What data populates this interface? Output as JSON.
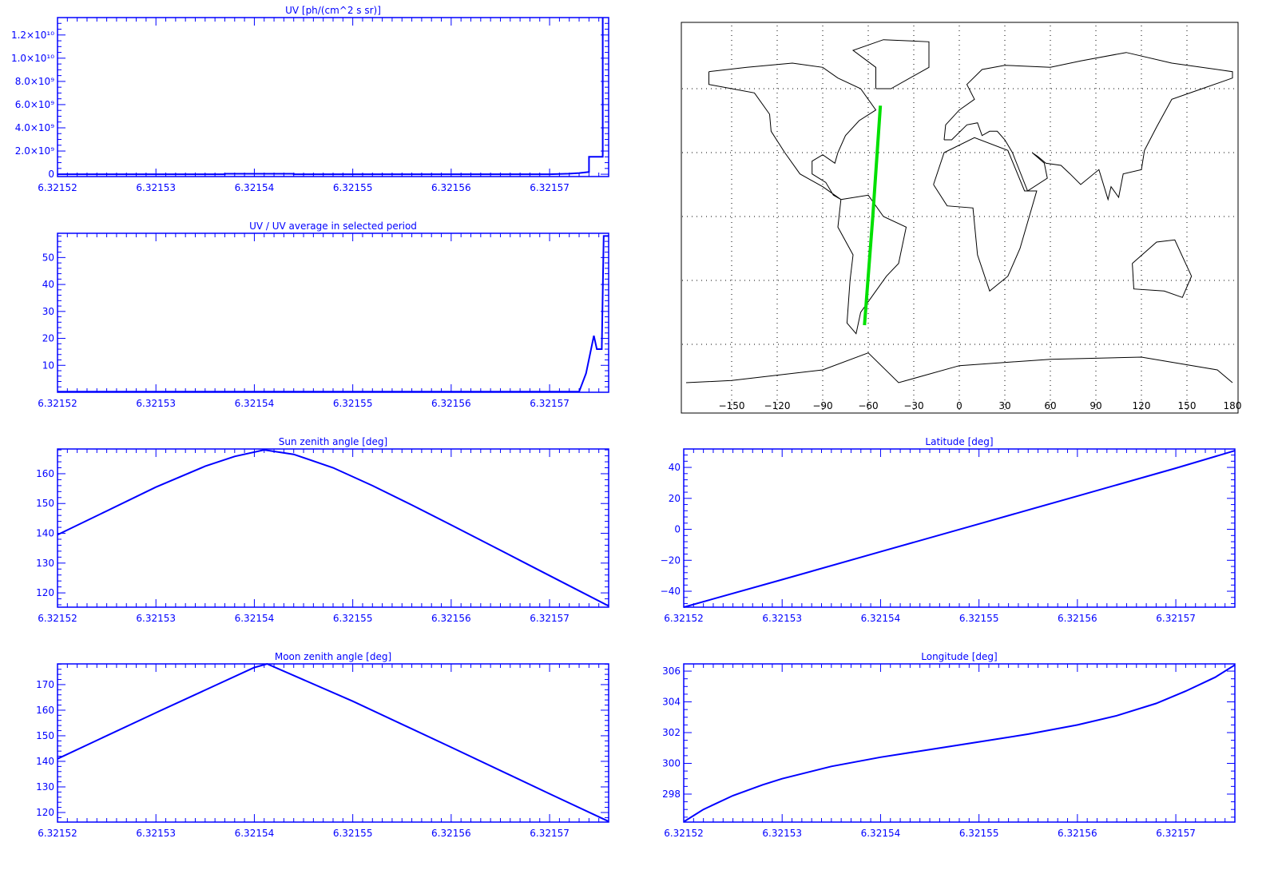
{
  "colors": {
    "axis": "#0000ff",
    "line": "#0000ff",
    "track": "#00e000",
    "coast": "#000000",
    "map_frame": "#000000"
  },
  "chart_data": [
    {
      "type": "line",
      "title": "UV [ph/(cm^2 s sr)]",
      "xlim": [
        6.32152,
        6.321576
      ],
      "ylim": [
        -200000000,
        13500000000
      ],
      "xticks": [
        6.32152,
        6.32153,
        6.32154,
        6.32155,
        6.32156,
        6.32157
      ],
      "xtick_labels": [
        "6.32152",
        "6.32153",
        "6.32154",
        "6.32155",
        "6.32156",
        "6.32157"
      ],
      "yticks": [
        0,
        2000000000,
        4000000000,
        6000000000,
        8000000000,
        10000000000,
        12000000000
      ],
      "ytick_labels": [
        "0",
        "2.0×10⁹",
        "4.0×10⁹",
        "6.0×10⁹",
        "8.0×10⁹",
        "1.0×10¹⁰",
        "1.2×10¹⁰"
      ],
      "x": [
        6.32152,
        6.321537,
        6.321537,
        6.321544,
        6.321544,
        6.32157,
        6.321572,
        6.321573,
        6.321574,
        6.321574,
        6.321575,
        6.321575,
        6.3215754,
        6.3215754
      ],
      "y": [
        0,
        0,
        40000000,
        40000000,
        0,
        0,
        50000000,
        100000000,
        200000000,
        1500000000,
        1500000000,
        1500000000,
        1500000000,
        13500000000
      ]
    },
    {
      "type": "line",
      "title": "UV / UV average in selected period",
      "xlim": [
        6.32152,
        6.321576
      ],
      "ylim": [
        0,
        59
      ],
      "xticks": [
        6.32152,
        6.32153,
        6.32154,
        6.32155,
        6.32156,
        6.32157
      ],
      "xtick_labels": [
        "6.32152",
        "6.32153",
        "6.32154",
        "6.32155",
        "6.32156",
        "6.32157"
      ],
      "yticks": [
        10,
        20,
        30,
        40,
        50
      ],
      "ytick_labels": [
        "10",
        "20",
        "30",
        "40",
        "50"
      ],
      "x": [
        6.32152,
        6.321572,
        6.321573,
        6.3215737,
        6.3215745,
        6.3215748,
        6.321575,
        6.3215753,
        6.3215754,
        6.3215755,
        6.321576
      ],
      "y": [
        0.2,
        0.2,
        0.2,
        7,
        21,
        16,
        16,
        16,
        37,
        58,
        58
      ]
    },
    {
      "type": "line",
      "title": "Sun zenith angle [deg]",
      "xlim": [
        6.32152,
        6.321576
      ],
      "ylim": [
        115.2,
        168.3
      ],
      "xticks": [
        6.32152,
        6.32153,
        6.32154,
        6.32155,
        6.32156,
        6.32157
      ],
      "xtick_labels": [
        "6.32152",
        "6.32153",
        "6.32154",
        "6.32155",
        "6.32156",
        "6.32157"
      ],
      "yticks": [
        120,
        130,
        140,
        150,
        160
      ],
      "ytick_labels": [
        "120",
        "130",
        "140",
        "150",
        "160"
      ],
      "x": [
        6.32152,
        6.321525,
        6.32153,
        6.321535,
        6.321538,
        6.321541,
        6.321544,
        6.321548,
        6.321552,
        6.321556,
        6.32156,
        6.321564,
        6.321568,
        6.321572,
        6.321576
      ],
      "y": [
        139.5,
        147.5,
        155.5,
        162.5,
        165.8,
        168.0,
        166.5,
        162.0,
        156.0,
        149.5,
        142.8,
        136.0,
        129.2,
        122.4,
        115.6
      ]
    },
    {
      "type": "line",
      "title": "Latitude [deg]",
      "xlim": [
        6.32152,
        6.321576
      ],
      "ylim": [
        -50.3,
        51.9
      ],
      "xticks": [
        6.32152,
        6.32153,
        6.32154,
        6.32155,
        6.32156,
        6.32157
      ],
      "xtick_labels": [
        "6.32152",
        "6.32153",
        "6.32154",
        "6.32155",
        "6.32156",
        "6.32157"
      ],
      "yticks": [
        -40,
        -20,
        0,
        20,
        40
      ],
      "ytick_labels": [
        "−40",
        "−20",
        "0",
        "20",
        "40"
      ],
      "x": [
        6.32152,
        6.32153,
        6.32154,
        6.32155,
        6.32156,
        6.32157,
        6.321576
      ],
      "y": [
        -50.5,
        -32.5,
        -14.5,
        3.5,
        21.5,
        39.5,
        50.8
      ]
    },
    {
      "type": "line",
      "title": "Moon zenith angle [deg]",
      "xlim": [
        6.32152,
        6.321576
      ],
      "ylim": [
        116.25,
        178.1
      ],
      "xticks": [
        6.32152,
        6.32153,
        6.32154,
        6.32155,
        6.32156,
        6.32157
      ],
      "xtick_labels": [
        "6.32152",
        "6.32153",
        "6.32154",
        "6.32155",
        "6.32156",
        "6.32157"
      ],
      "yticks": [
        120,
        130,
        140,
        150,
        160,
        170
      ],
      "ytick_labels": [
        "120",
        "130",
        "140",
        "150",
        "160",
        "170"
      ],
      "x": [
        6.32152,
        6.32153,
        6.32154,
        6.3215413,
        6.32155,
        6.32156,
        6.32157,
        6.321576
      ],
      "y": [
        141,
        159,
        176.7,
        178.1,
        163.5,
        145.5,
        127.3,
        116.5
      ]
    },
    {
      "type": "line",
      "title": "Longitude [deg]",
      "xlim": [
        6.32152,
        6.321576
      ],
      "ylim": [
        296.18,
        306.47
      ],
      "xticks": [
        6.32152,
        6.32153,
        6.32154,
        6.32155,
        6.32156,
        6.32157
      ],
      "xtick_labels": [
        "6.32152",
        "6.32153",
        "6.32154",
        "6.32155",
        "6.32156",
        "6.32157"
      ],
      "yticks": [
        298,
        300,
        302,
        304,
        306
      ],
      "ytick_labels": [
        "298",
        "300",
        "302",
        "304",
        "306"
      ],
      "x": [
        6.32152,
        6.321522,
        6.321525,
        6.321528,
        6.32153,
        6.321535,
        6.32154,
        6.321545,
        6.32155,
        6.321555,
        6.32156,
        6.321564,
        6.321568,
        6.321571,
        6.321574,
        6.321576
      ],
      "y": [
        296.2,
        297.0,
        297.9,
        298.6,
        299.0,
        299.8,
        300.4,
        300.9,
        301.4,
        301.9,
        302.5,
        303.1,
        303.9,
        304.7,
        305.6,
        306.4
      ]
    },
    {
      "type": "map",
      "xlim": [
        -180,
        180
      ],
      "ylim": [
        -90,
        90
      ],
      "lon_ticks": [
        -150,
        -120,
        -90,
        -60,
        -30,
        0,
        30,
        60,
        90,
        120,
        150,
        180
      ],
      "lon_tick_labels": [
        "−150",
        "−120",
        "−90",
        "−60",
        "−30",
        "0",
        "30",
        "60",
        "90",
        "120",
        "150",
        "180"
      ],
      "lat_grid": [
        -60,
        -30,
        0,
        30,
        60
      ],
      "track": [
        [
          -52,
          52
        ],
        [
          -57,
          0
        ],
        [
          -62.5,
          -51
        ]
      ],
      "coastlines": [
        [
          [
            -165,
            68
          ],
          [
            -140,
            70
          ],
          [
            -110,
            72
          ],
          [
            -90,
            70
          ],
          [
            -80,
            65
          ],
          [
            -65,
            60
          ],
          [
            -55,
            50
          ],
          [
            -66,
            45
          ],
          [
            -75,
            38
          ],
          [
            -80,
            30
          ],
          [
            -82,
            25
          ],
          [
            -90,
            29
          ],
          [
            -97,
            26
          ],
          [
            -97,
            20
          ],
          [
            -88,
            16
          ],
          [
            -83,
            10
          ],
          [
            -78,
            8
          ],
          [
            -90,
            14
          ],
          [
            -105,
            20
          ],
          [
            -115,
            30
          ],
          [
            -124,
            40
          ],
          [
            -125,
            48
          ],
          [
            -135,
            58
          ],
          [
            -150,
            60
          ],
          [
            -165,
            62
          ],
          [
            -165,
            68
          ]
        ],
        [
          [
            -78,
            8
          ],
          [
            -60,
            10
          ],
          [
            -50,
            0
          ],
          [
            -35,
            -5
          ],
          [
            -40,
            -22
          ],
          [
            -48,
            -28
          ],
          [
            -58,
            -38
          ],
          [
            -65,
            -45
          ],
          [
            -68,
            -55
          ],
          [
            -74,
            -50
          ],
          [
            -72,
            -30
          ],
          [
            -70,
            -18
          ],
          [
            -80,
            -5
          ],
          [
            -78,
            8
          ]
        ],
        [
          [
            -55,
            60
          ],
          [
            -45,
            60
          ],
          [
            -20,
            70
          ],
          [
            -20,
            82
          ],
          [
            -50,
            83
          ],
          [
            -70,
            78
          ],
          [
            -55,
            70
          ],
          [
            -55,
            60
          ]
        ],
        [
          [
            -17,
            15
          ],
          [
            -10,
            30
          ],
          [
            10,
            37
          ],
          [
            32,
            31
          ],
          [
            43,
            12
          ],
          [
            51,
            12
          ],
          [
            40,
            -15
          ],
          [
            32,
            -28
          ],
          [
            20,
            -35
          ],
          [
            12,
            -18
          ],
          [
            9,
            4
          ],
          [
            -8,
            5
          ],
          [
            -17,
            15
          ]
        ],
        [
          [
            -10,
            36
          ],
          [
            -9,
            43
          ],
          [
            0,
            50
          ],
          [
            10,
            55
          ],
          [
            5,
            62
          ],
          [
            15,
            69
          ],
          [
            30,
            71
          ],
          [
            60,
            70
          ],
          [
            80,
            73
          ],
          [
            110,
            77
          ],
          [
            140,
            72
          ],
          [
            180,
            68
          ],
          [
            180,
            65
          ],
          [
            160,
            60
          ],
          [
            140,
            55
          ],
          [
            130,
            42
          ],
          [
            122,
            31
          ],
          [
            120,
            22
          ],
          [
            108,
            20
          ],
          [
            105,
            9
          ],
          [
            100,
            14
          ],
          [
            98,
            8
          ],
          [
            92,
            22
          ],
          [
            80,
            15
          ],
          [
            73,
            20
          ],
          [
            67,
            24
          ],
          [
            57,
            25
          ],
          [
            52,
            28
          ],
          [
            48,
            30
          ],
          [
            56,
            25
          ],
          [
            58,
            18
          ],
          [
            45,
            12
          ],
          [
            35,
            30
          ],
          [
            30,
            36
          ],
          [
            25,
            40
          ],
          [
            20,
            40
          ],
          [
            15,
            38
          ],
          [
            12,
            44
          ],
          [
            5,
            43
          ],
          [
            -5,
            36
          ],
          [
            -10,
            36
          ]
        ],
        [
          [
            114,
            -22
          ],
          [
            130,
            -12
          ],
          [
            142,
            -11
          ],
          [
            153,
            -28
          ],
          [
            147,
            -38
          ],
          [
            135,
            -35
          ],
          [
            115,
            -34
          ],
          [
            114,
            -22
          ]
        ],
        [
          [
            -180,
            -78
          ],
          [
            -150,
            -77
          ],
          [
            -90,
            -72
          ],
          [
            -60,
            -64
          ],
          [
            -40,
            -78
          ],
          [
            0,
            -70
          ],
          [
            60,
            -67
          ],
          [
            120,
            -66
          ],
          [
            170,
            -72
          ],
          [
            180,
            -78
          ]
        ]
      ]
    }
  ]
}
